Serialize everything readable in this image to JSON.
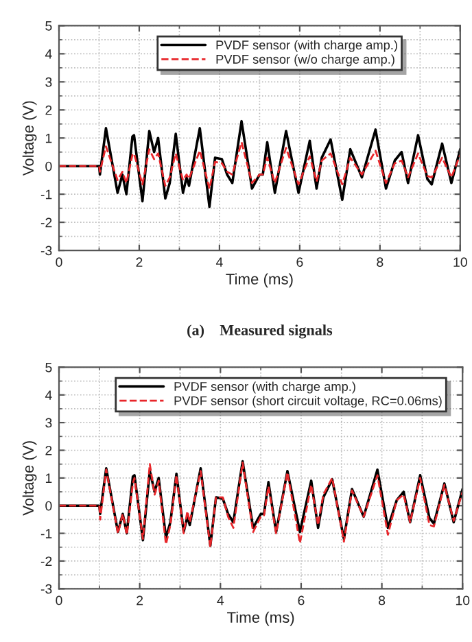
{
  "chart_data": [
    {
      "type": "line",
      "xlabel": "Time (ms)",
      "ylabel": "Voltage (V)",
      "xlim": [
        0,
        10
      ],
      "ylim": [
        -3,
        5
      ],
      "xticks": [
        0,
        2,
        4,
        6,
        8,
        10
      ],
      "yticks": [
        -3,
        -2,
        -1,
        0,
        1,
        2,
        3,
        4,
        5
      ],
      "grid": true,
      "legend": "top",
      "annotations": [
        "(a)    Measured signals"
      ],
      "series": [
        {
          "name": "PVDF sensor (with charge amp.)",
          "color": "#000000",
          "line_style": "solid",
          "x": [
            0,
            1.0,
            1.02,
            1.17,
            1.46,
            1.58,
            1.68,
            1.83,
            1.87,
            2.08,
            2.25,
            2.37,
            2.47,
            2.65,
            2.76,
            2.91,
            3.09,
            3.18,
            3.24,
            3.51,
            3.75,
            3.89,
            4.06,
            4.19,
            4.32,
            4.55,
            4.81,
            5.0,
            5.08,
            5.19,
            5.38,
            5.66,
            5.97,
            6.25,
            6.42,
            6.55,
            6.77,
            7.06,
            7.26,
            7.55,
            7.89,
            8.15,
            8.37,
            8.54,
            8.7,
            8.95,
            9.18,
            9.29,
            9.55,
            9.78,
            10.0
          ],
          "values": [
            0,
            0,
            -0.3,
            1.35,
            -0.95,
            -0.3,
            -1.0,
            1.05,
            1.1,
            -1.25,
            1.25,
            0.5,
            1.0,
            -1.15,
            -0.6,
            1.15,
            -0.95,
            -0.4,
            -0.7,
            1.35,
            -1.45,
            0.3,
            0.25,
            -0.3,
            -0.6,
            1.6,
            -0.8,
            -0.3,
            -0.3,
            0.85,
            -0.95,
            1.25,
            -0.95,
            0.9,
            -0.8,
            0.3,
            0.95,
            -1.2,
            0.6,
            -0.4,
            1.3,
            -0.8,
            0.2,
            0.5,
            -0.6,
            1.1,
            -0.45,
            -0.65,
            0.8,
            -0.6,
            0.6
          ]
        },
        {
          "name": "PVDF sensor (w/o charge amp.)",
          "color": "#e8262a",
          "line_style": "dashed",
          "x": [
            0,
            1.0,
            1.02,
            1.17,
            1.46,
            1.58,
            1.68,
            1.83,
            1.87,
            2.08,
            2.25,
            2.37,
            2.47,
            2.65,
            2.76,
            2.91,
            3.09,
            3.18,
            3.24,
            3.51,
            3.75,
            3.89,
            4.06,
            4.19,
            4.32,
            4.55,
            4.81,
            5.0,
            5.08,
            5.19,
            5.38,
            5.66,
            5.97,
            6.25,
            6.42,
            6.55,
            6.77,
            7.06,
            7.26,
            7.55,
            7.89,
            8.15,
            8.37,
            8.54,
            8.7,
            8.95,
            9.18,
            9.29,
            9.55,
            9.78,
            10.0
          ],
          "values": [
            0,
            0,
            -0.2,
            0.7,
            -0.5,
            -0.2,
            -0.6,
            0.4,
            0.45,
            -0.65,
            0.6,
            0.25,
            0.45,
            -0.7,
            -0.4,
            0.45,
            -0.5,
            -0.3,
            -0.45,
            0.55,
            -0.8,
            0.15,
            0.1,
            -0.2,
            -0.3,
            0.85,
            -0.6,
            -0.3,
            -0.3,
            0.3,
            -0.6,
            0.65,
            -0.65,
            0.35,
            -0.55,
            0.2,
            0.45,
            -0.65,
            0.3,
            -0.3,
            0.55,
            -0.6,
            0.1,
            0.2,
            -0.4,
            0.45,
            -0.35,
            -0.4,
            0.3,
            -0.4,
            0.4
          ]
        }
      ]
    },
    {
      "type": "line",
      "xlabel": "Time (ms)",
      "ylabel": "Voltage (V)",
      "xlim": [
        0,
        10
      ],
      "ylim": [
        -3,
        5
      ],
      "xticks": [
        0,
        2,
        4,
        6,
        8,
        10
      ],
      "yticks": [
        -3,
        -2,
        -1,
        0,
        1,
        2,
        3,
        4,
        5
      ],
      "grid": true,
      "legend": "top",
      "series": [
        {
          "name": "PVDF sensor (with charge amp.)",
          "color": "#000000",
          "line_style": "solid",
          "x": [
            0,
            1.0,
            1.02,
            1.17,
            1.46,
            1.58,
            1.68,
            1.83,
            1.87,
            2.08,
            2.25,
            2.37,
            2.47,
            2.65,
            2.76,
            2.91,
            3.09,
            3.18,
            3.24,
            3.51,
            3.75,
            3.89,
            4.06,
            4.19,
            4.32,
            4.55,
            4.81,
            5.0,
            5.08,
            5.19,
            5.38,
            5.66,
            5.97,
            6.25,
            6.42,
            6.55,
            6.77,
            7.06,
            7.26,
            7.55,
            7.89,
            8.15,
            8.37,
            8.54,
            8.7,
            8.95,
            9.18,
            9.29,
            9.55,
            9.78,
            10.0
          ],
          "values": [
            0,
            0,
            -0.3,
            1.35,
            -0.95,
            -0.3,
            -1.0,
            1.05,
            1.1,
            -1.25,
            1.25,
            0.5,
            1.0,
            -1.15,
            -0.6,
            1.15,
            -0.95,
            -0.4,
            -0.7,
            1.35,
            -1.45,
            0.3,
            0.25,
            -0.3,
            -0.6,
            1.6,
            -0.8,
            -0.3,
            -0.3,
            0.85,
            -0.95,
            1.25,
            -0.95,
            0.9,
            -0.8,
            0.3,
            0.95,
            -1.2,
            0.6,
            -0.4,
            1.3,
            -0.8,
            0.2,
            0.5,
            -0.6,
            1.1,
            -0.45,
            -0.65,
            0.8,
            -0.6,
            0.6
          ]
        },
        {
          "name": "PVDF sensor (short circuit voltage, RC=0.06ms)",
          "color": "#e8262a",
          "line_style": "dashed",
          "x": [
            0,
            1.0,
            1.02,
            1.17,
            1.46,
            1.58,
            1.68,
            1.83,
            1.87,
            2.08,
            2.25,
            2.37,
            2.47,
            2.65,
            2.76,
            2.91,
            3.09,
            3.18,
            3.24,
            3.51,
            3.75,
            3.89,
            4.06,
            4.19,
            4.32,
            4.55,
            4.81,
            5.0,
            5.08,
            5.19,
            5.38,
            5.66,
            5.97,
            6.25,
            6.42,
            6.55,
            6.77,
            7.06,
            7.26,
            7.55,
            7.89,
            8.15,
            8.37,
            8.54,
            8.7,
            8.95,
            9.18,
            9.29,
            9.55,
            9.78,
            10.0
          ],
          "values": [
            0,
            0,
            -0.5,
            1.3,
            -1.0,
            -0.3,
            -1.05,
            0.8,
            1.0,
            -1.2,
            1.5,
            0.4,
            0.9,
            -1.4,
            -0.7,
            1.1,
            -1.0,
            -0.2,
            -0.6,
            1.25,
            -1.5,
            0.3,
            0.3,
            -0.4,
            -0.8,
            1.55,
            -0.95,
            -0.4,
            -0.35,
            0.7,
            -1.0,
            1.2,
            -1.35,
            0.75,
            -0.7,
            0.4,
            1.0,
            -1.3,
            0.55,
            -0.4,
            1.1,
            -1.05,
            0.2,
            0.4,
            -0.6,
            1.0,
            -0.7,
            -0.75,
            0.75,
            -0.55,
            0.5
          ]
        }
      ]
    }
  ]
}
